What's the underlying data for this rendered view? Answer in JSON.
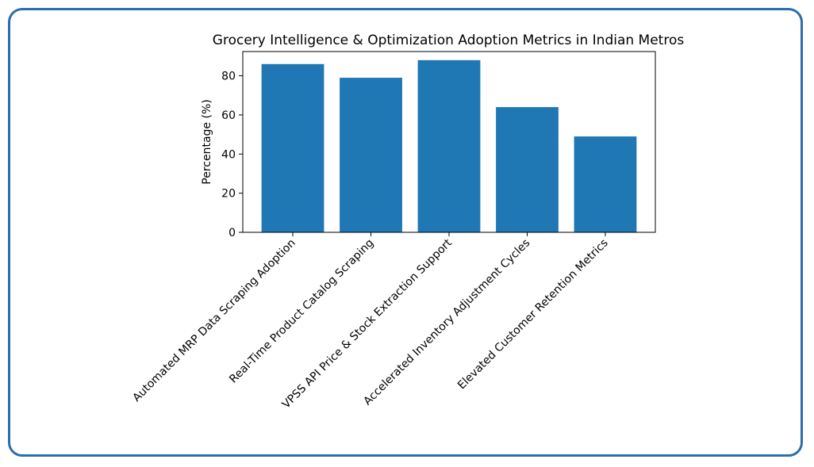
{
  "chart_data": {
    "type": "bar",
    "title": "Grocery Intelligence & Optimization Adoption Metrics in Indian Metros",
    "xlabel": "",
    "ylabel": "Percentage (%)",
    "categories": [
      "Automated MRP Data Scraping Adoption",
      "Real-Time Product Catalog Scraping",
      "VPSS API Price & Stock Extraction Support",
      "Accelerated Inventory Adjustment Cycles",
      "Elevated Customer Retention Metrics"
    ],
    "values": [
      86,
      79,
      88,
      64,
      49
    ],
    "ylim": [
      0,
      92.4
    ],
    "yticks": [
      0,
      20,
      40,
      60,
      80
    ],
    "grid": false,
    "color": "#1f77b4",
    "frame_color": "#2a6db0"
  }
}
